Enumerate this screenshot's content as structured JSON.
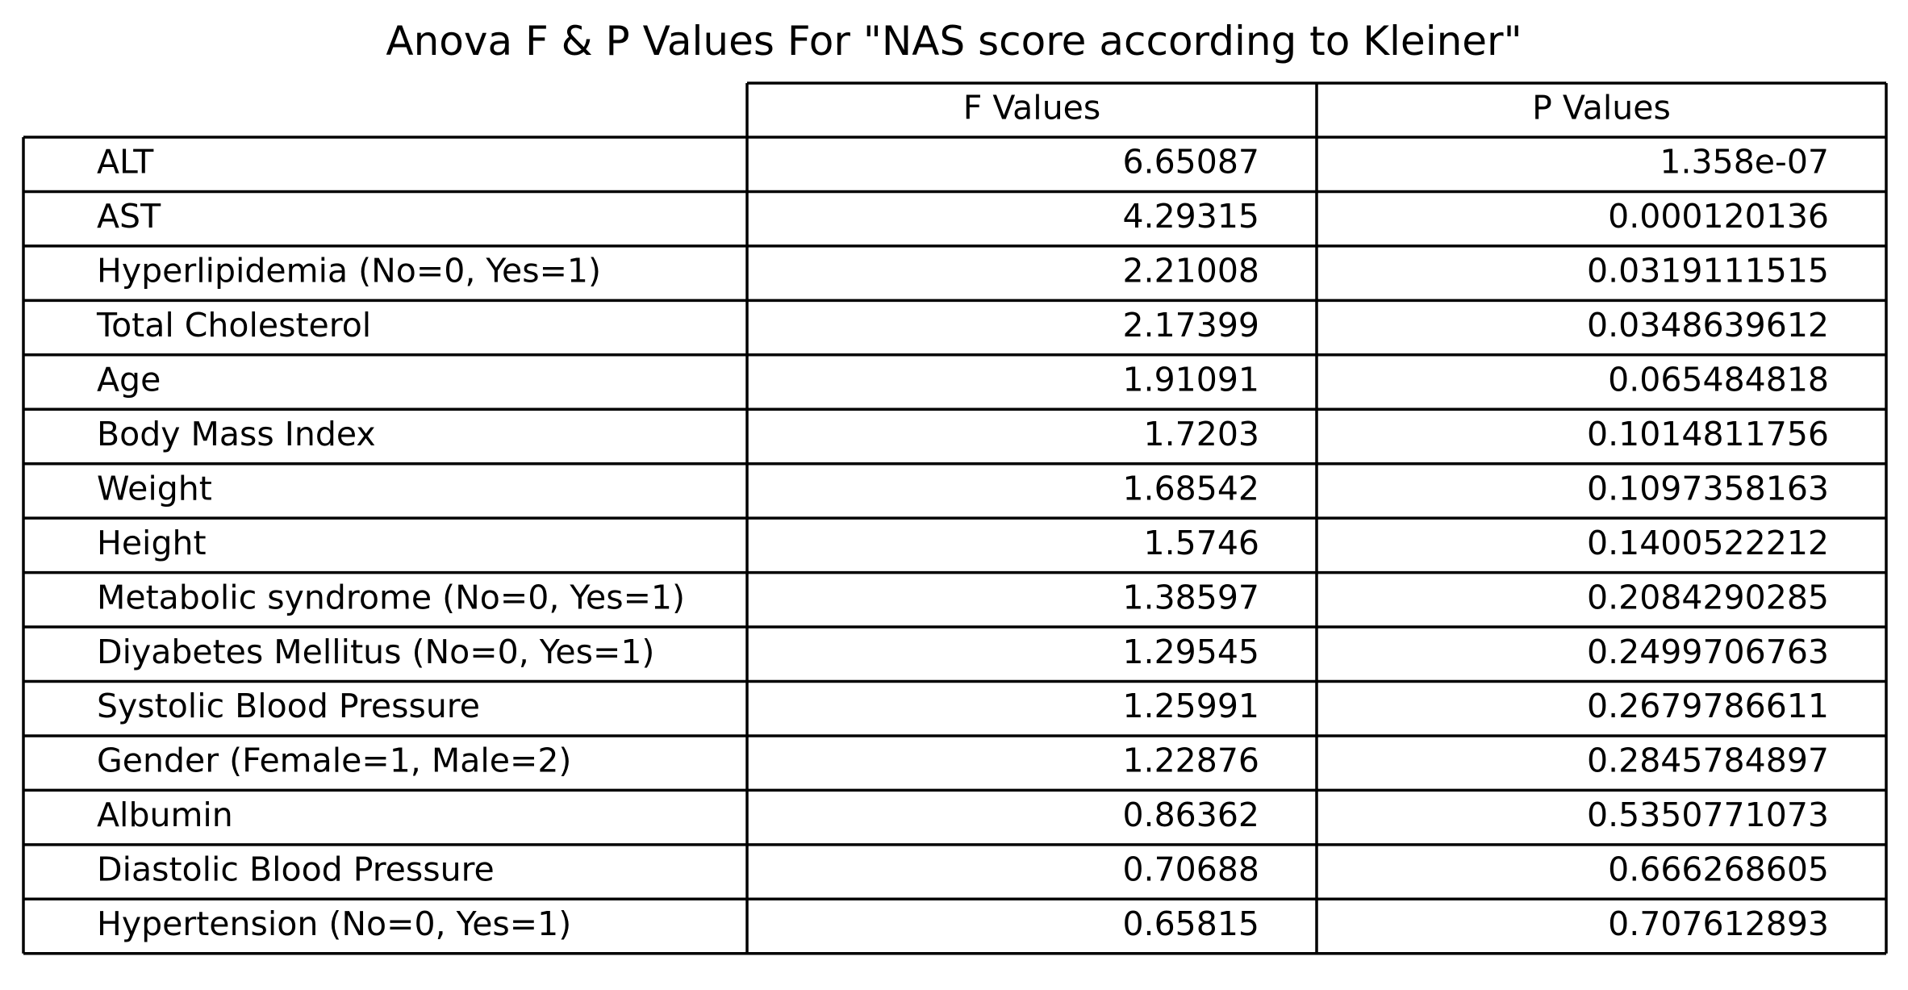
{
  "chart_data": {
    "type": "table",
    "title": "Anova F & P Values For \"NAS score according to Kleiner\"",
    "columns": [
      "F Values",
      "P Values"
    ],
    "rows": [
      {
        "label": "ALT",
        "f": "6.65087",
        "p": "1.358e-07"
      },
      {
        "label": "AST",
        "f": "4.29315",
        "p": "0.000120136"
      },
      {
        "label": "Hyperlipidemia (No=0, Yes=1)",
        "f": "2.21008",
        "p": "0.0319111515"
      },
      {
        "label": "Total Cholesterol",
        "f": "2.17399",
        "p": "0.0348639612"
      },
      {
        "label": "Age",
        "f": "1.91091",
        "p": "0.065484818"
      },
      {
        "label": "Body Mass Index",
        "f": "1.7203",
        "p": "0.1014811756"
      },
      {
        "label": "Weight",
        "f": "1.68542",
        "p": "0.1097358163"
      },
      {
        "label": "Height",
        "f": "1.5746",
        "p": "0.1400522212"
      },
      {
        "label": "Metabolic syndrome (No=0, Yes=1)",
        "f": "1.38597",
        "p": "0.2084290285"
      },
      {
        "label": "Diyabetes Mellitus (No=0, Yes=1)",
        "f": "1.29545",
        "p": "0.2499706763"
      },
      {
        "label": "Systolic Blood Pressure",
        "f": "1.25991",
        "p": "0.2679786611"
      },
      {
        "label": "Gender (Female=1, Male=2)",
        "f": "1.22876",
        "p": "0.2845784897"
      },
      {
        "label": "Albumin",
        "f": "0.86362",
        "p": "0.5350771073"
      },
      {
        "label": "Diastolic Blood Pressure",
        "f": "0.70688",
        "p": "0.666268605"
      },
      {
        "label": "Hypertension (No=0, Yes=1)",
        "f": "0.65815",
        "p": "0.707612893"
      }
    ]
  }
}
